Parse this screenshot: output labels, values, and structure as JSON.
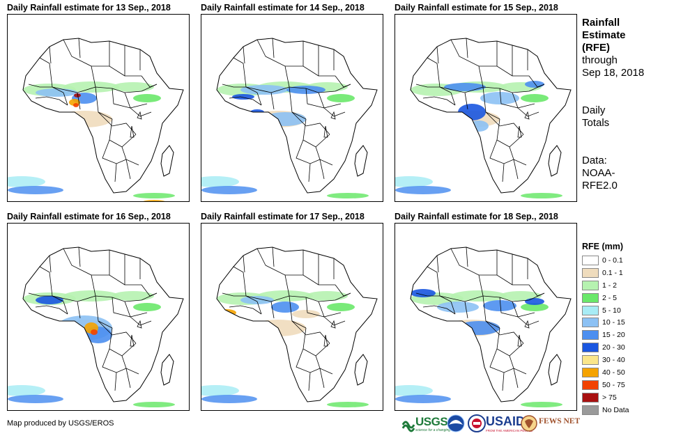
{
  "panels": [
    {
      "title": "Daily Rainfall estimate for 13 Sep., 2018"
    },
    {
      "title": "Daily Rainfall estimate for 14 Sep., 2018"
    },
    {
      "title": "Daily Rainfall estimate for 15 Sep., 2018"
    },
    {
      "title": "Daily Rainfall estimate for 16 Sep., 2018"
    },
    {
      "title": "Daily Rainfall estimate for 17 Sep., 2018"
    },
    {
      "title": "Daily Rainfall estimate for 18 Sep., 2018"
    }
  ],
  "sidebar": {
    "line1": "Rainfall",
    "line2": "Estimate",
    "line3": "(RFE)",
    "line4": "through",
    "line5": "Sep 18, 2018",
    "totals1": "Daily",
    "totals2": "Totals",
    "data1": "Data:",
    "data2": "NOAA-",
    "data3": "RFE2.0"
  },
  "legend": {
    "title": "RFE (mm)",
    "items": [
      {
        "label": "0 - 0.1",
        "color": "#ffffff"
      },
      {
        "label": "0.1 - 1",
        "color": "#efdcbd"
      },
      {
        "label": "1 - 2",
        "color": "#b6f2b0"
      },
      {
        "label": "2 - 5",
        "color": "#6ae86a"
      },
      {
        "label": "5 - 10",
        "color": "#a8ecf5"
      },
      {
        "label": "10 - 15",
        "color": "#8cc1f4"
      },
      {
        "label": "15 - 20",
        "color": "#4d8ff0"
      },
      {
        "label": "20 - 30",
        "color": "#1a56e0"
      },
      {
        "label": "30 - 40",
        "color": "#fae68a"
      },
      {
        "label": "40 - 50",
        "color": "#f5a300"
      },
      {
        "label": "50 - 75",
        "color": "#f24200"
      },
      {
        "label": "> 75",
        "color": "#a81010"
      },
      {
        "label": "No Data",
        "color": "#9a9a9a"
      }
    ]
  },
  "credit": "Map produced by USGS/EROS",
  "logos": {
    "usgs": "USGS",
    "usgs_tag": "science for a changing world",
    "usaid": "USAID",
    "usaid_tag": "FROM THE AMERICAN PEOPLE",
    "fews": "FEWS NET"
  }
}
